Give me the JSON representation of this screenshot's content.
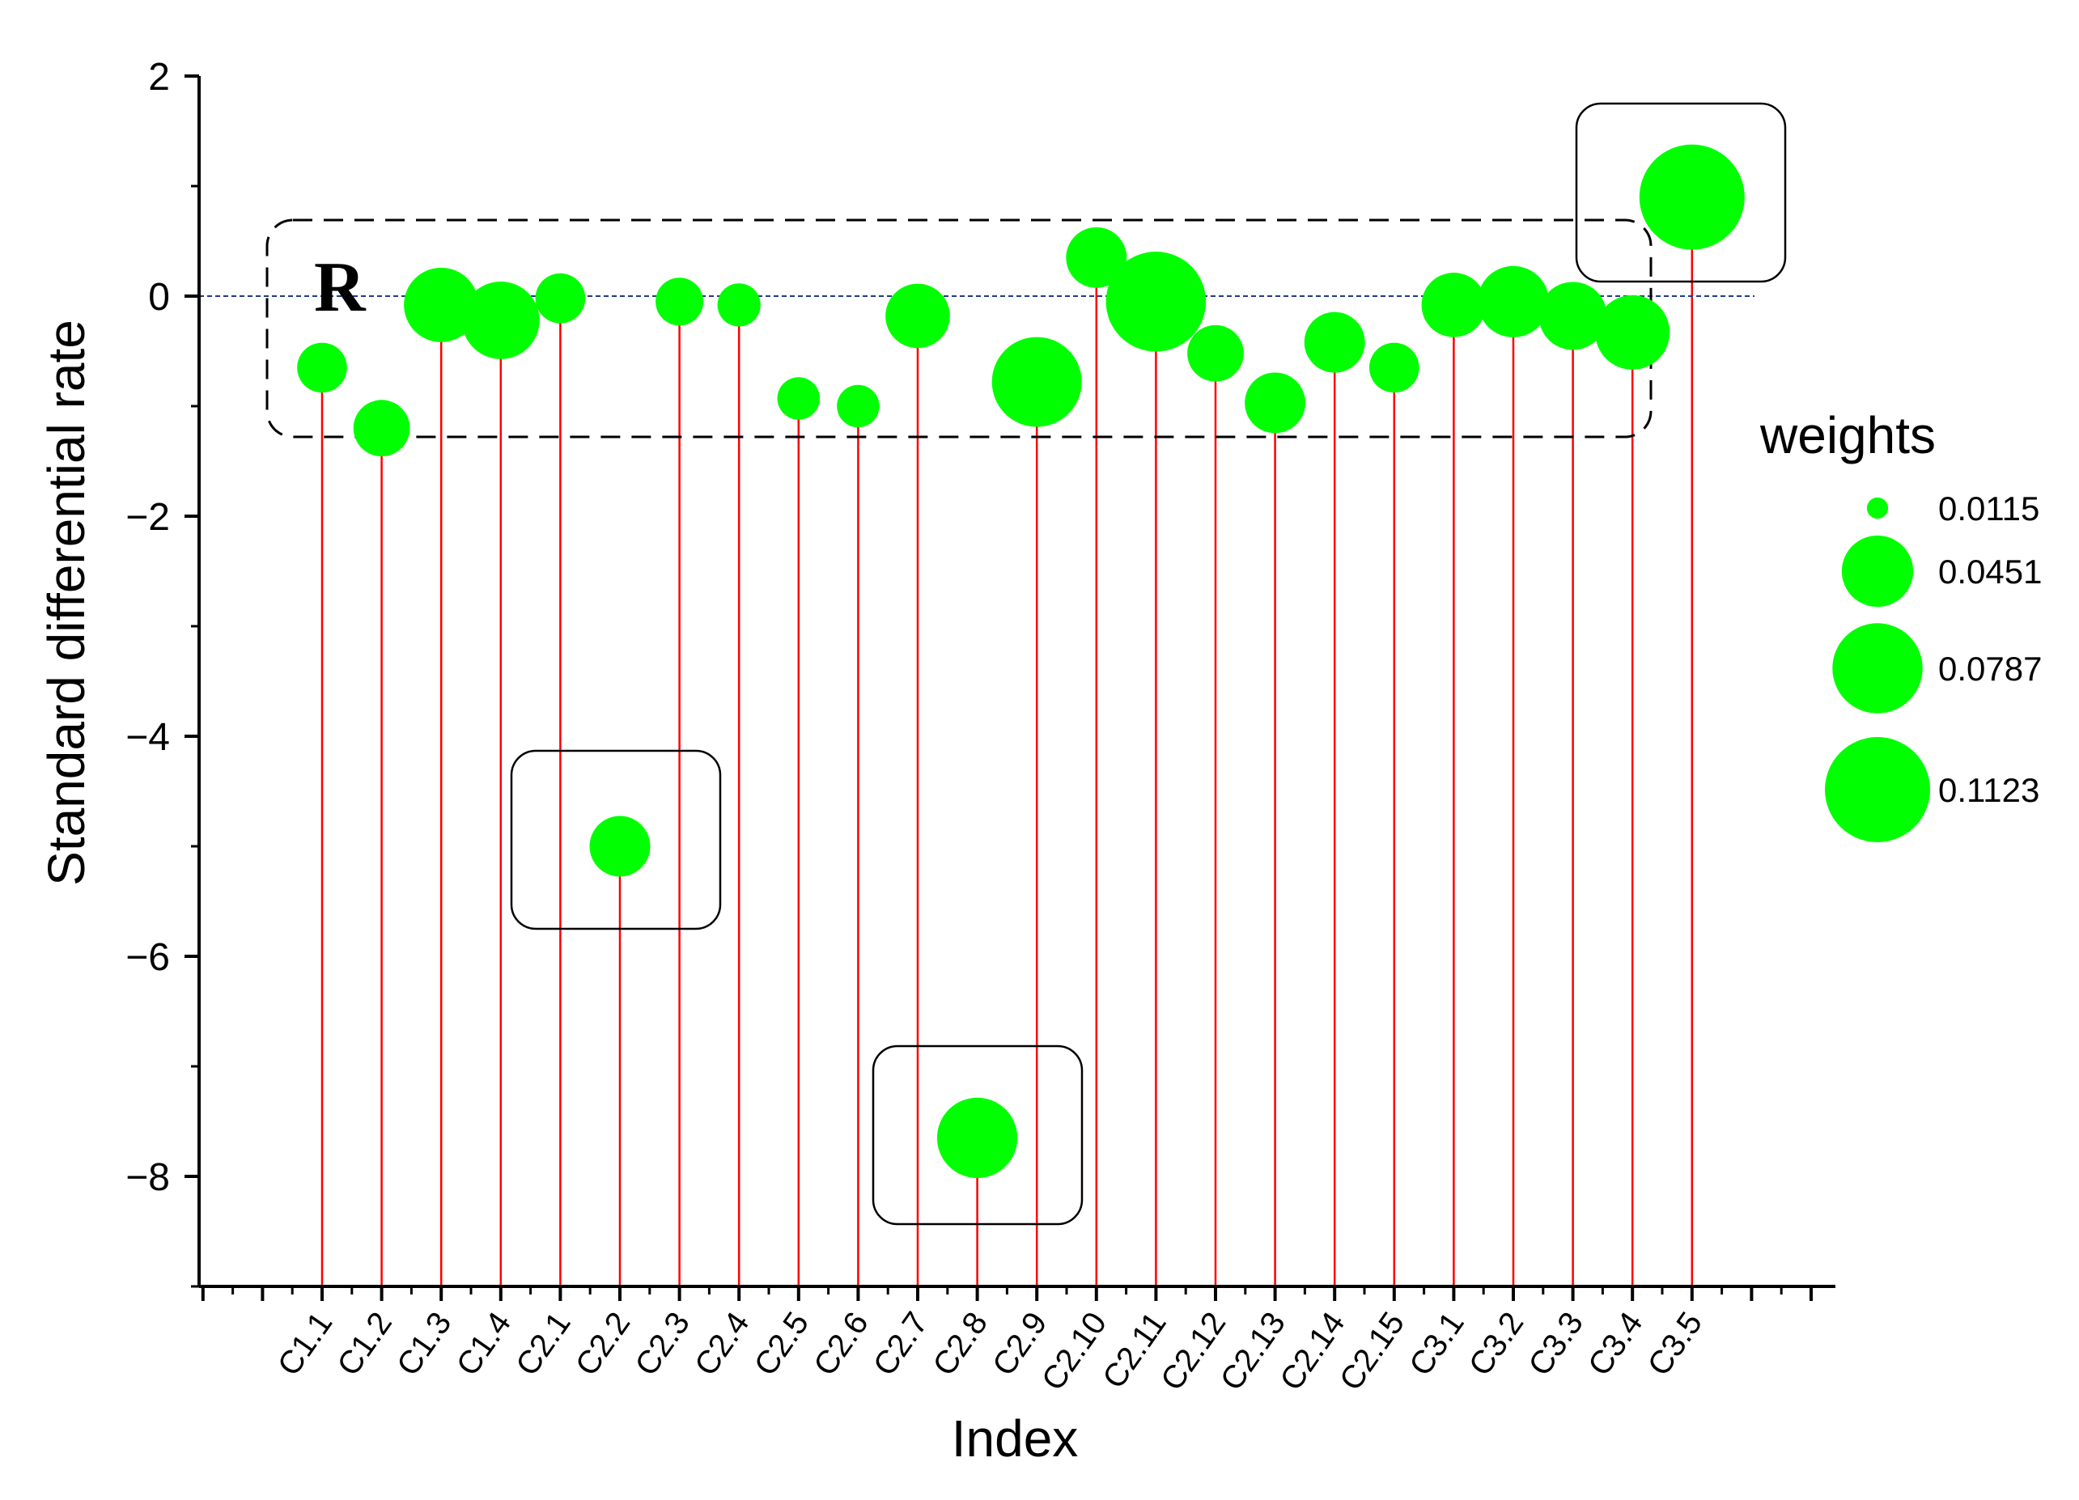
{
  "chart_data": {
    "type": "scatter",
    "subtype": "stem-bubble",
    "xlabel": "Index",
    "ylabel": "Standard differential rate",
    "ylim": [
      -9,
      2
    ],
    "yticks": [
      "2",
      "0",
      "−2",
      "−4",
      "−6",
      "−8"
    ],
    "ytick_values": [
      2,
      0,
      -2,
      -4,
      -6,
      -8
    ],
    "reference_line_y": 0,
    "categories": [
      "C1.1",
      "C1.2",
      "C1.3",
      "C1.4",
      "C2.1",
      "C2.2",
      "C2.3",
      "C2.4",
      "C2.5",
      "C2.6",
      "C2.7",
      "C2.8",
      "C2.9",
      "C2.10",
      "C2.11",
      "C2.12",
      "C2.13",
      "C2.14",
      "C2.15",
      "C3.1",
      "C3.2",
      "C3.3",
      "C3.4",
      "C3.5"
    ],
    "values": [
      -0.65,
      -1.2,
      -0.08,
      -0.22,
      -0.02,
      -5.0,
      -0.05,
      -0.08,
      -0.93,
      -1.0,
      -0.18,
      -7.65,
      -0.78,
      0.35,
      -0.05,
      -0.52,
      -0.97,
      -0.42,
      -0.65,
      -0.08,
      -0.05,
      -0.18,
      -0.33,
      0.9
    ],
    "weights": [
      0.018,
      0.025,
      0.05,
      0.055,
      0.018,
      0.03,
      0.016,
      0.012,
      0.0115,
      0.0115,
      0.035,
      0.06,
      0.078,
      0.03,
      0.1,
      0.025,
      0.03,
      0.03,
      0.018,
      0.035,
      0.045,
      0.04,
      0.05,
      0.1123
    ],
    "legend": {
      "title": "weights",
      "entries": [
        "0.0115",
        "0.0451",
        "0.0787",
        "0.1123"
      ],
      "values": [
        0.0115,
        0.0451,
        0.0787,
        0.1123
      ],
      "position": "right"
    },
    "annotation_label": "R",
    "colors": {
      "marker": "#00ff00",
      "stem": "#ff0000",
      "reference_line": "#1f3a8a",
      "box": "#000000"
    },
    "grid": false
  }
}
